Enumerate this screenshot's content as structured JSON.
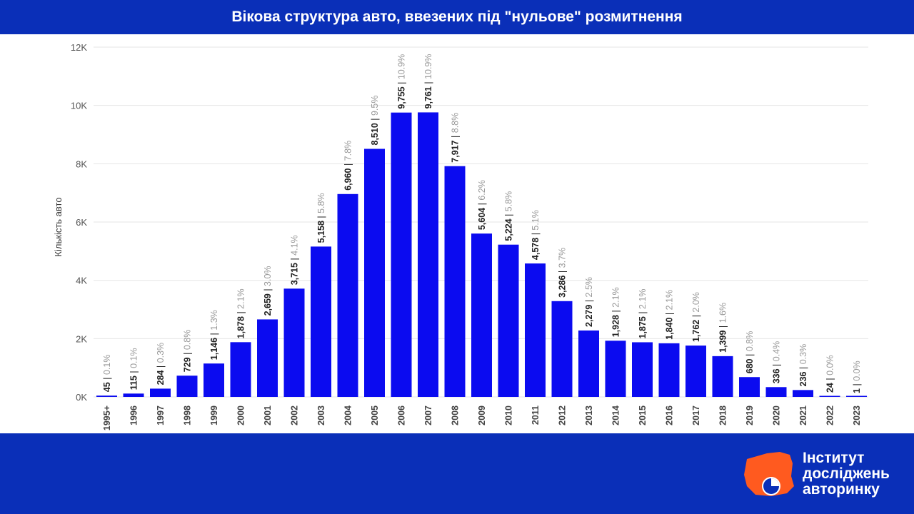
{
  "header": {
    "title": "Вікова структура авто, ввезених під \"нульове\" розмитнення"
  },
  "colors": {
    "bar": "#0b0bf0",
    "header_bg": "#0a2fb8",
    "logo_accent": "#ff5a1f"
  },
  "logo": {
    "line1": "Інститут",
    "line2": "досліджень",
    "line3": "авторинку",
    "icon": "orange-map-with-clock-icon"
  },
  "chart_data": {
    "type": "bar",
    "title": "Вікова структура авто, ввезених під \"нульове\" розмитнення",
    "ylabel": "Кількість авто",
    "xlabel": "",
    "ylim": [
      0,
      12000
    ],
    "yticks": [
      {
        "value": 0,
        "label": "0K"
      },
      {
        "value": 2000,
        "label": "2K"
      },
      {
        "value": 4000,
        "label": "4K"
      },
      {
        "value": 6000,
        "label": "6K"
      },
      {
        "value": 8000,
        "label": "8K"
      },
      {
        "value": 10000,
        "label": "10K"
      },
      {
        "value": 12000,
        "label": "12K"
      }
    ],
    "grid": true,
    "categories": [
      "1995+",
      "1996",
      "1997",
      "1998",
      "1999",
      "2000",
      "2001",
      "2002",
      "2003",
      "2004",
      "2005",
      "2006",
      "2007",
      "2008",
      "2009",
      "2010",
      "2011",
      "2012",
      "2013",
      "2014",
      "2015",
      "2016",
      "2017",
      "2018",
      "2019",
      "2020",
      "2021",
      "2022",
      "2023"
    ],
    "values": [
      45,
      115,
      284,
      729,
      1146,
      1878,
      2659,
      3715,
      5158,
      6960,
      8510,
      9755,
      9761,
      7917,
      5604,
      5224,
      4578,
      3286,
      2279,
      1928,
      1875,
      1840,
      1762,
      1399,
      680,
      336,
      236,
      24,
      1
    ],
    "value_labels": [
      "45",
      "115",
      "284",
      "729",
      "1,146",
      "1,878",
      "2,659",
      "3,715",
      "5,158",
      "6,960",
      "8,510",
      "9,755",
      "9,761",
      "7,917",
      "5,604",
      "5,224",
      "4,578",
      "3,286",
      "2,279",
      "1,928",
      "1,875",
      "1,840",
      "1,762",
      "1,399",
      "680",
      "336",
      "236",
      "24",
      "1"
    ],
    "percent_labels": [
      "0.1%",
      "0.1%",
      "0.3%",
      "0.8%",
      "1.3%",
      "2.1%",
      "3.0%",
      "4.1%",
      "5.8%",
      "7.8%",
      "9.5%",
      "10.9%",
      "10.9%",
      "8.8%",
      "6.2%",
      "5.8%",
      "5.1%",
      "3.7%",
      "2.5%",
      "2.1%",
      "2.1%",
      "2.1%",
      "2.0%",
      "1.6%",
      "0.8%",
      "0.4%",
      "0.3%",
      "0.0%",
      "0.0%"
    ]
  }
}
